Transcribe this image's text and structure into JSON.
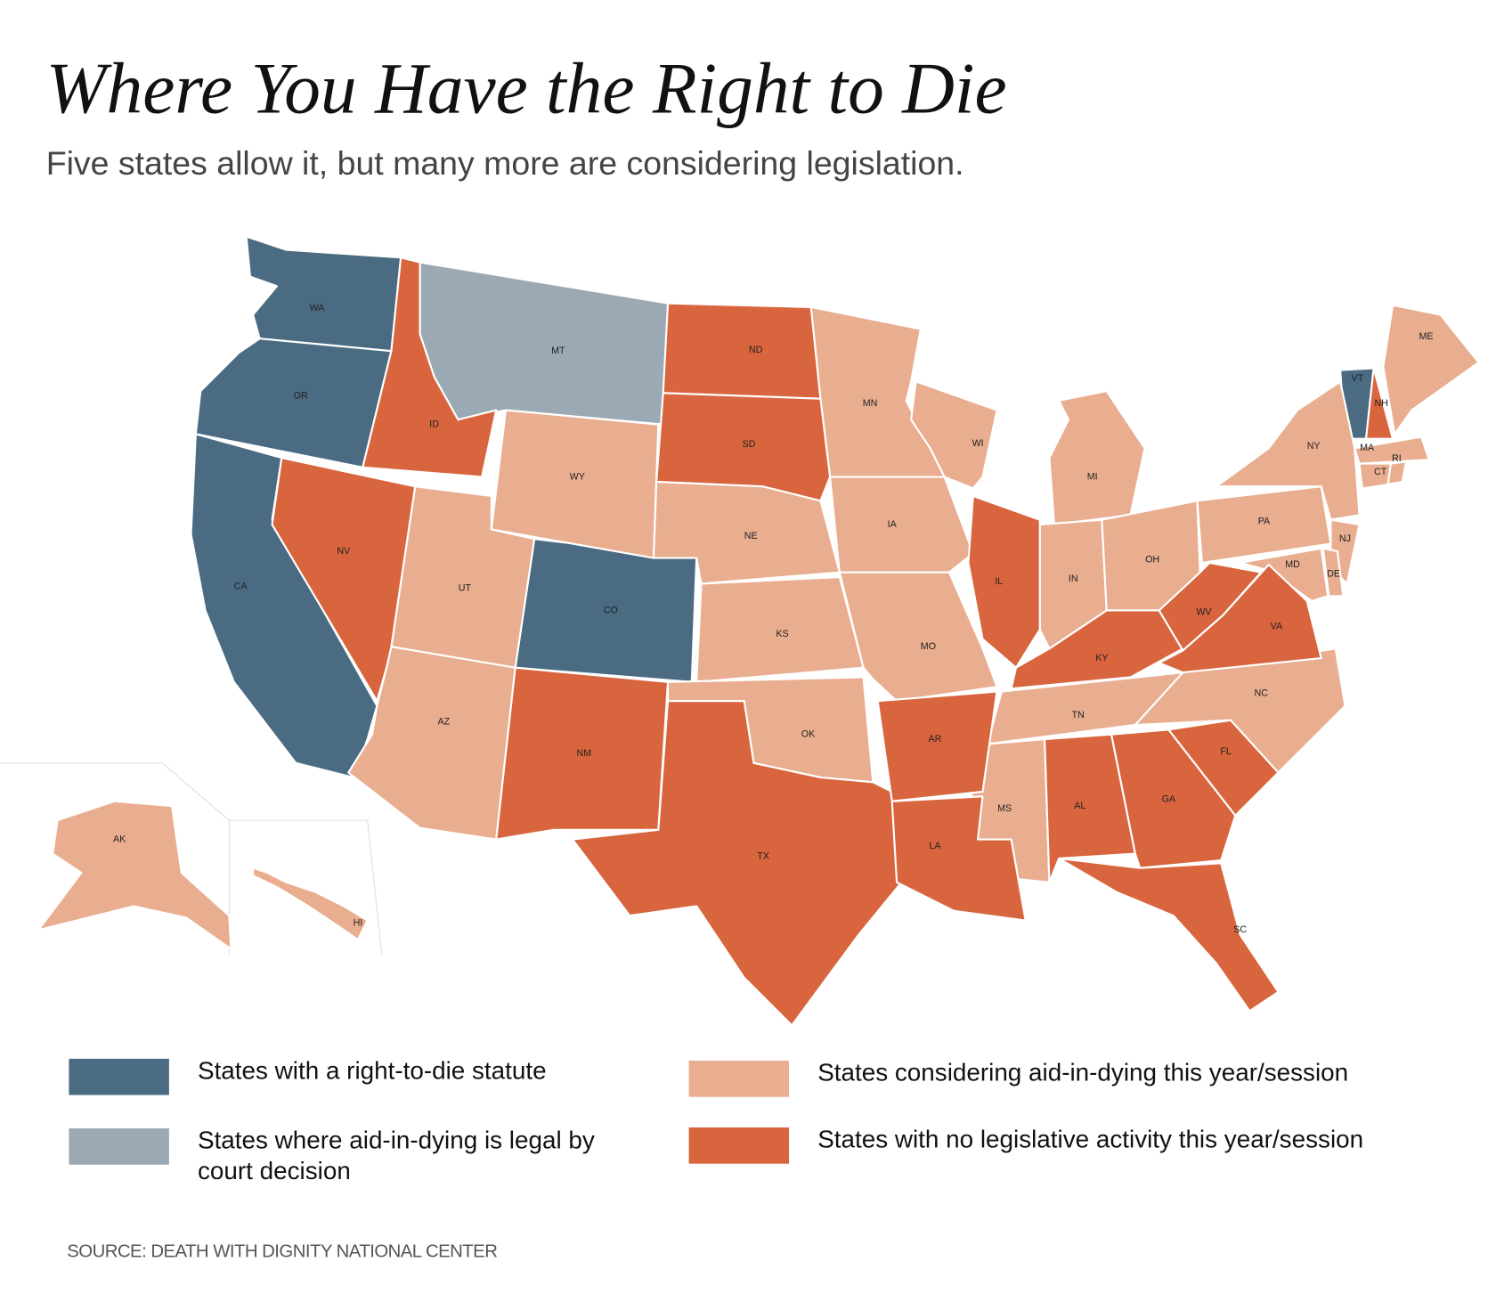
{
  "title": "Where You Have the Right to Die",
  "subtitle": "Five states allow it, but many more are considering legislation.",
  "legend": [
    {
      "label": "States with a right-to-die statute",
      "color": "#4a6b82",
      "states": [
        "WA",
        "OR",
        "CA",
        "CO",
        "VT"
      ]
    },
    {
      "label": "States where aid-in-dying is legal by court decision",
      "color": "#9aa9b4",
      "states": [
        "MT"
      ]
    },
    {
      "label": "States considering aid-in-dying this year/session",
      "color": "#e9ad8f",
      "states": [
        "AK",
        "HI",
        "UT",
        "WY",
        "AZ",
        "NE",
        "KS",
        "OK",
        "MN",
        "IA",
        "MO",
        "WI",
        "MI",
        "IN",
        "OH",
        "MS",
        "TN",
        "NC",
        "PA",
        "NY",
        "NJ",
        "MD",
        "DE",
        "ME",
        "MA",
        "CT",
        "RI"
      ]
    },
    {
      "label": "States with no legislative activity this year/session",
      "color": "#d8653e",
      "states": [
        "ID",
        "NV",
        "NM",
        "ND",
        "SD",
        "TX",
        "AR",
        "LA",
        "IL",
        "KY",
        "WV",
        "VA",
        "AL",
        "GA",
        "SC",
        "FL",
        "NH"
      ]
    }
  ],
  "source": "SOURCE: DEATH WITH DIGNITY NATIONAL CENTER"
}
